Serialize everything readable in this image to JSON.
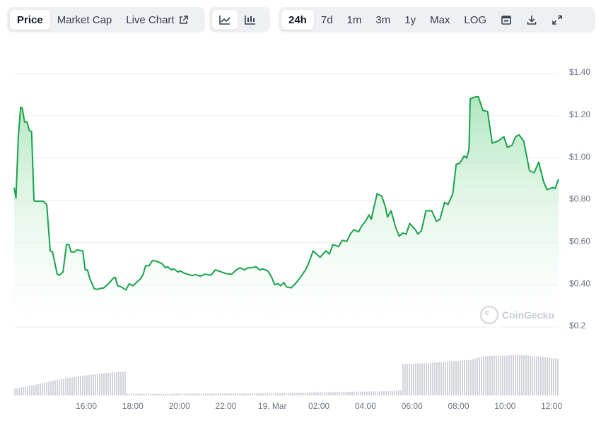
{
  "toolbar": {
    "metric_tabs": [
      {
        "label": "Price",
        "active": true
      },
      {
        "label": "Market Cap",
        "active": false
      },
      {
        "label": "Live Chart",
        "active": false,
        "icon": "external-link-icon"
      }
    ],
    "chart_style_buttons": [
      {
        "icon": "line-chart-icon"
      },
      {
        "icon": "candlestick-chart-icon"
      }
    ],
    "range_tabs": [
      {
        "label": "24h",
        "active": true
      },
      {
        "label": "7d",
        "active": false
      },
      {
        "label": "1m",
        "active": false
      },
      {
        "label": "3m",
        "active": false
      },
      {
        "label": "1y",
        "active": false
      },
      {
        "label": "Max",
        "active": false
      },
      {
        "label": "LOG",
        "active": false
      }
    ],
    "action_icons": [
      {
        "icon": "calendar-icon"
      },
      {
        "icon": "download-icon"
      },
      {
        "icon": "expand-icon"
      }
    ]
  },
  "watermark": "CoinGecko",
  "colors": {
    "line": "#16a34a",
    "area_top": "#a7e3b8",
    "grid": "#ececec",
    "volume": "#d1d5db"
  },
  "chart_data": {
    "type": "area",
    "y_ticks": [
      {
        "value": 1.4,
        "label": "$1.40"
      },
      {
        "value": 1.2,
        "label": "$1.20"
      },
      {
        "value": 1.0,
        "label": "$1.00"
      },
      {
        "value": 0.8,
        "label": "$0.80"
      },
      {
        "value": 0.6,
        "label": "$0.60"
      },
      {
        "value": 0.4,
        "label": "$0.40"
      },
      {
        "value": 0.2,
        "label": "$0.2"
      }
    ],
    "ylim": [
      0.2,
      1.4
    ],
    "x_ticks": [
      {
        "t": 1.5,
        "label": "16:00"
      },
      {
        "t": 3.5,
        "label": "18:00"
      },
      {
        "t": 5.5,
        "label": "20:00"
      },
      {
        "t": 7.5,
        "label": "22:00"
      },
      {
        "t": 9.5,
        "label": "19. Mar"
      },
      {
        "t": 11.5,
        "label": "02:00"
      },
      {
        "t": 13.5,
        "label": "04:00"
      },
      {
        "t": 15.5,
        "label": "06:00"
      },
      {
        "t": 17.5,
        "label": "08:00"
      },
      {
        "t": 19.5,
        "label": "10:00"
      },
      {
        "t": 21.5,
        "label": "12:00"
      }
    ],
    "xlim": [
      -1.6,
      21.8
    ],
    "price": {
      "t": [
        -1.6,
        -1.52,
        -1.42,
        -1.32,
        -1.25,
        -1.15,
        -1.05,
        -0.95,
        -0.85,
        -0.75,
        -0.72,
        -0.55,
        -0.35,
        -0.2,
        -0.05,
        0.05,
        0.25,
        0.35,
        0.5,
        0.65,
        0.75,
        0.85,
        0.95,
        1.0,
        1.1,
        1.35,
        1.45,
        1.55,
        1.65,
        1.85,
        2.0,
        2.1,
        2.25,
        2.5,
        2.65,
        2.75,
        2.85,
        3.0,
        3.2,
        3.35,
        3.5,
        3.65,
        3.85,
        3.95,
        4.05,
        4.2,
        4.35,
        4.55,
        4.75,
        4.9,
        5.0,
        5.15,
        5.25,
        5.45,
        5.55,
        5.7,
        5.85,
        6.05,
        6.2,
        6.4,
        6.6,
        6.85,
        7.05,
        7.25,
        7.45,
        7.6,
        7.75,
        7.95,
        8.1,
        8.3,
        8.45,
        8.6,
        8.8,
        8.95,
        9.1,
        9.3,
        9.45,
        9.6,
        9.75,
        9.85,
        10.0,
        10.1,
        10.3,
        10.45,
        10.6,
        10.8,
        10.95,
        11.05,
        11.25,
        11.45,
        11.55,
        11.8,
        11.95,
        12.1,
        12.35,
        12.5,
        12.7,
        12.85,
        13.0,
        13.2,
        13.35,
        13.5,
        13.65,
        13.75,
        13.85,
        14.0,
        14.2,
        14.35,
        14.45,
        14.6,
        14.8,
        14.95,
        15.1,
        15.25,
        15.4,
        15.65,
        15.75,
        15.9,
        16.1,
        16.35,
        16.55,
        16.7,
        16.9,
        17.05,
        17.25,
        17.4,
        17.55,
        17.75,
        17.85,
        17.95,
        18.0,
        18.25,
        18.35,
        18.55,
        18.75,
        18.95,
        19.2,
        19.45,
        19.6,
        19.8,
        19.95,
        20.1,
        20.3,
        20.55,
        20.75,
        20.95,
        21.15,
        21.3,
        21.55,
        21.65,
        21.8
      ],
      "v": [
        0.86,
        0.81,
        1.1,
        1.24,
        1.235,
        1.17,
        1.17,
        1.13,
        1.125,
        0.8,
        0.795,
        0.795,
        0.795,
        0.78,
        0.56,
        0.555,
        0.45,
        0.445,
        0.46,
        0.59,
        0.59,
        0.555,
        0.555,
        0.555,
        0.565,
        0.56,
        0.47,
        0.47,
        0.43,
        0.38,
        0.378,
        0.383,
        0.385,
        0.41,
        0.43,
        0.435,
        0.395,
        0.39,
        0.375,
        0.405,
        0.395,
        0.41,
        0.43,
        0.45,
        0.49,
        0.49,
        0.515,
        0.51,
        0.5,
        0.48,
        0.485,
        0.47,
        0.475,
        0.46,
        0.465,
        0.455,
        0.45,
        0.443,
        0.448,
        0.44,
        0.45,
        0.445,
        0.47,
        0.462,
        0.455,
        0.45,
        0.45,
        0.47,
        0.48,
        0.47,
        0.48,
        0.48,
        0.485,
        0.47,
        0.475,
        0.465,
        0.44,
        0.4,
        0.405,
        0.395,
        0.41,
        0.39,
        0.385,
        0.4,
        0.42,
        0.45,
        0.475,
        0.5,
        0.56,
        0.54,
        0.53,
        0.56,
        0.545,
        0.59,
        0.58,
        0.61,
        0.605,
        0.64,
        0.66,
        0.65,
        0.68,
        0.7,
        0.73,
        0.71,
        0.76,
        0.83,
        0.82,
        0.77,
        0.72,
        0.75,
        0.67,
        0.63,
        0.645,
        0.64,
        0.69,
        0.66,
        0.64,
        0.655,
        0.75,
        0.75,
        0.7,
        0.71,
        0.79,
        0.78,
        0.83,
        0.97,
        0.975,
        1.01,
        1.0,
        1.04,
        1.28,
        1.29,
        1.29,
        1.225,
        1.22,
        1.07,
        1.08,
        1.1,
        1.05,
        1.06,
        1.1,
        1.11,
        1.08,
        0.94,
        0.93,
        0.98,
        0.89,
        0.85,
        0.86,
        0.855,
        0.9,
        0.9,
        0.89
      ]
    },
    "volume": {
      "t": [
        -1.6,
        -0.5,
        0.5,
        1.5,
        2.5,
        3.0,
        3.2,
        3.22,
        5.0,
        10.0,
        14.5,
        15.0,
        15.02,
        16.0,
        17.0,
        18.0,
        18.5,
        19.0,
        19.5,
        20.0,
        20.5,
        21.0,
        21.5,
        21.8
      ],
      "v": [
        0.08,
        0.14,
        0.2,
        0.24,
        0.27,
        0.28,
        0.28,
        0.02,
        0.02,
        0.03,
        0.05,
        0.06,
        0.37,
        0.38,
        0.4,
        0.42,
        0.46,
        0.47,
        0.47,
        0.48,
        0.47,
        0.46,
        0.44,
        0.43
      ]
    }
  }
}
